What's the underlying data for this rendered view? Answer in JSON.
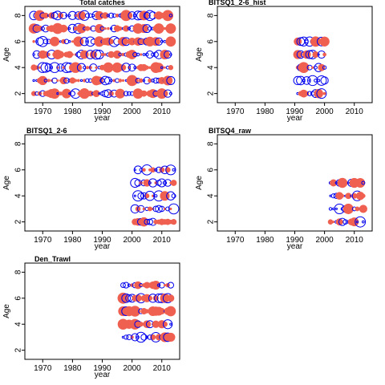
{
  "colors": {
    "positive": "#f06050",
    "negative": "#0000ee",
    "axis": "#000000"
  },
  "chart_data": [
    {
      "type": "scatter",
      "title": "Total catches",
      "xlabel": "year",
      "ylabel": "Age",
      "xlim": [
        1964,
        2016
      ],
      "ylim": [
        1.3,
        8.7
      ],
      "xticks": [
        1970,
        1980,
        1990,
        2000,
        2010
      ],
      "yticks": [
        2,
        4,
        6,
        8
      ],
      "pattern": {
        "start": 1967,
        "end": 2013,
        "step": 1,
        "ages": [
          2,
          3,
          4,
          5,
          6,
          7,
          8
        ]
      }
    },
    {
      "type": "scatter",
      "title": "BITSQ1_2-6_hist",
      "xlabel": "year",
      "ylabel": "Age",
      "xlim": [
        1964,
        2016
      ],
      "ylim": [
        1.3,
        8.7
      ],
      "xticks": [
        1970,
        1980,
        1990,
        2000,
        2010
      ],
      "yticks": [
        2,
        4,
        6,
        8
      ],
      "pattern": {
        "start": 1991,
        "end": 2000,
        "step": 1,
        "ages": [
          2,
          3,
          4,
          5,
          6
        ]
      }
    },
    {
      "type": "scatter",
      "title": "BITSQ1_2-6",
      "xlabel": "year",
      "ylabel": "Age",
      "xlim": [
        1964,
        2016
      ],
      "ylim": [
        1.3,
        8.7
      ],
      "xticks": [
        1970,
        1980,
        1990,
        2000,
        2010
      ],
      "yticks": [
        2,
        4,
        6,
        8
      ],
      "pattern": {
        "start": 2001,
        "end": 2014,
        "step": 1,
        "ages": [
          2,
          3,
          4,
          5,
          6
        ]
      }
    },
    {
      "type": "scatter",
      "title": "BITSQ4_raw",
      "xlabel": "year",
      "ylabel": "Age",
      "xlim": [
        1964,
        2016
      ],
      "ylim": [
        1.3,
        8.7
      ],
      "xticks": [
        1970,
        1980,
        1990,
        2000,
        2010
      ],
      "yticks": [
        2,
        4,
        6,
        8
      ],
      "pattern": {
        "start": 2002,
        "end": 2013,
        "step": 1,
        "ages": [
          2,
          3,
          4,
          5
        ]
      }
    },
    {
      "type": "scatter",
      "title": "Den_Trawl",
      "xlabel": "year",
      "ylabel": "Age",
      "xlim": [
        1964,
        2016
      ],
      "ylim": [
        1.3,
        8.7
      ],
      "xticks": [
        1970,
        1980,
        1990,
        2000,
        2010
      ],
      "yticks": [
        2,
        4,
        6,
        8
      ],
      "pattern": {
        "start": 1997,
        "end": 2013,
        "step": 1,
        "ages": [
          3,
          4,
          5,
          6,
          7
        ]
      }
    }
  ]
}
